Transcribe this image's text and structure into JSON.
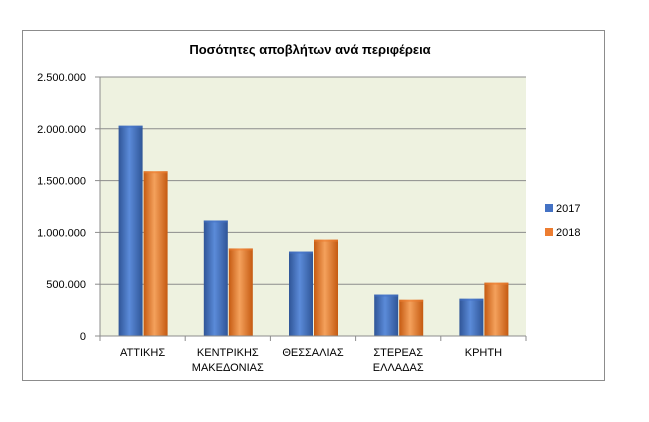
{
  "chart_data": {
    "type": "bar",
    "title": "Ποσότητες αποβλήτων ανά περιφέρεια",
    "categories": [
      [
        "ΑΤΤΙΚΗΣ"
      ],
      [
        "ΚΕΝΤΡΙΚΗΣ",
        "ΜΑΚΕΔΟΝΙΑΣ"
      ],
      [
        "ΘΕΣΣΑΛΙΑΣ"
      ],
      [
        "ΣΤΕΡΕΑΣ",
        "ΕΛΛΑΔΑΣ"
      ],
      [
        "ΚΡΗΤΗ"
      ]
    ],
    "series": [
      {
        "name": "2017",
        "color": "#4472c4",
        "values": [
          2030000,
          1115000,
          815000,
          400000,
          360000
        ]
      },
      {
        "name": "2018",
        "color": "#ed7d31",
        "values": [
          1590000,
          845000,
          930000,
          350000,
          515000
        ]
      }
    ],
    "yticks": [
      "0",
      "500.000",
      "1.000.000",
      "1.500.000",
      "2.000.000",
      "2.500.000"
    ],
    "ylim": [
      0,
      2500000
    ],
    "grid": true,
    "plot_background": "#eef2e0",
    "legend_position": "right"
  }
}
